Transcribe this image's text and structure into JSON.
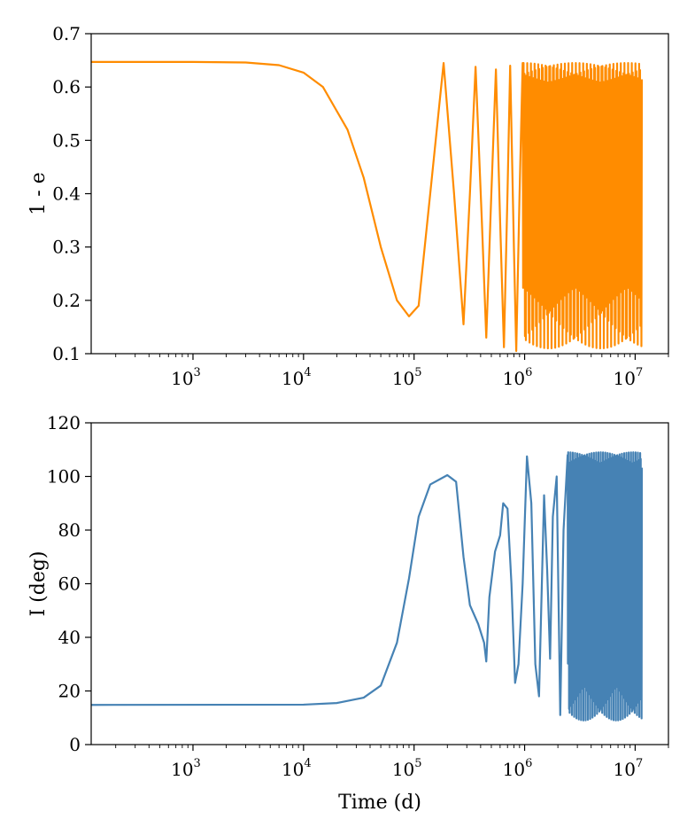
{
  "chart_data": [
    {
      "type": "line",
      "title": "",
      "xlabel": "",
      "ylabel": "1 - e",
      "x_scale": "log",
      "xlim": [
        120,
        20000000
      ],
      "ylim": [
        0.1,
        0.7
      ],
      "x_ticks": [
        {
          "base": "10",
          "exp": "3",
          "value": 1000
        },
        {
          "base": "10",
          "exp": "4",
          "value": 10000
        },
        {
          "base": "10",
          "exp": "5",
          "value": 100000
        },
        {
          "base": "10",
          "exp": "6",
          "value": 1000000
        },
        {
          "base": "10",
          "exp": "7",
          "value": 10000000
        }
      ],
      "y_ticks": [
        "0.1",
        "0.2",
        "0.3",
        "0.4",
        "0.5",
        "0.6",
        "0.7"
      ],
      "grid": false,
      "series": [
        {
          "color": "#ff8c00",
          "trend_points": [
            {
              "x": 120,
              "y": 0.647
            },
            {
              "x": 1000,
              "y": 0.647
            },
            {
              "x": 3000,
              "y": 0.646
            },
            {
              "x": 6000,
              "y": 0.641
            },
            {
              "x": 10000,
              "y": 0.627
            },
            {
              "x": 15000,
              "y": 0.6
            },
            {
              "x": 25000,
              "y": 0.52
            },
            {
              "x": 35000,
              "y": 0.43
            },
            {
              "x": 50000,
              "y": 0.3
            },
            {
              "x": 70000,
              "y": 0.2
            },
            {
              "x": 90000,
              "y": 0.17
            },
            {
              "x": 110000,
              "y": 0.19
            },
            {
              "x": 140000,
              "y": 0.4
            },
            {
              "x": 185000,
              "y": 0.645
            },
            {
              "x": 230000,
              "y": 0.4
            },
            {
              "x": 280000,
              "y": 0.155
            },
            {
              "x": 320000,
              "y": 0.4
            },
            {
              "x": 360000,
              "y": 0.638
            },
            {
              "x": 410000,
              "y": 0.35
            },
            {
              "x": 450000,
              "y": 0.13
            },
            {
              "x": 500000,
              "y": 0.4
            },
            {
              "x": 550000,
              "y": 0.633
            },
            {
              "x": 600000,
              "y": 0.35
            },
            {
              "x": 650000,
              "y": 0.112
            },
            {
              "x": 700000,
              "y": 0.4
            },
            {
              "x": 740000,
              "y": 0.64
            },
            {
              "x": 800000,
              "y": 0.3
            },
            {
              "x": 840000,
              "y": 0.105
            },
            {
              "x": 900000,
              "y": 0.4
            },
            {
              "x": 960000,
              "y": 0.645
            }
          ],
          "dense_oscillation": {
            "x_start": 960000,
            "x_end": 11500000,
            "y_min": 0.11,
            "y_max": 0.645
          }
        }
      ]
    },
    {
      "type": "line",
      "title": "",
      "xlabel": "Time (d)",
      "ylabel": "I (deg)",
      "x_scale": "log",
      "xlim": [
        120,
        20000000
      ],
      "ylim": [
        0,
        120
      ],
      "x_ticks": [
        {
          "base": "10",
          "exp": "3",
          "value": 1000
        },
        {
          "base": "10",
          "exp": "4",
          "value": 10000
        },
        {
          "base": "10",
          "exp": "5",
          "value": 100000
        },
        {
          "base": "10",
          "exp": "6",
          "value": 1000000
        },
        {
          "base": "10",
          "exp": "7",
          "value": 10000000
        }
      ],
      "y_ticks": [
        "0",
        "20",
        "40",
        "60",
        "80",
        "100",
        "120"
      ],
      "grid": false,
      "series": [
        {
          "color": "#4682b4",
          "trend_points": [
            {
              "x": 120,
              "y": 14.8
            },
            {
              "x": 10000,
              "y": 14.9
            },
            {
              "x": 20000,
              "y": 15.5
            },
            {
              "x": 35000,
              "y": 17.5
            },
            {
              "x": 50000,
              "y": 22
            },
            {
              "x": 70000,
              "y": 38
            },
            {
              "x": 90000,
              "y": 62
            },
            {
              "x": 110000,
              "y": 85
            },
            {
              "x": 140000,
              "y": 97
            },
            {
              "x": 200000,
              "y": 100.5
            },
            {
              "x": 240000,
              "y": 98
            },
            {
              "x": 280000,
              "y": 70
            },
            {
              "x": 320000,
              "y": 52
            },
            {
              "x": 380000,
              "y": 45
            },
            {
              "x": 430000,
              "y": 38
            },
            {
              "x": 450000,
              "y": 31
            },
            {
              "x": 480000,
              "y": 55
            },
            {
              "x": 540000,
              "y": 72
            },
            {
              "x": 600000,
              "y": 78
            },
            {
              "x": 640000,
              "y": 90
            },
            {
              "x": 700000,
              "y": 88
            },
            {
              "x": 760000,
              "y": 60
            },
            {
              "x": 820000,
              "y": 23
            },
            {
              "x": 880000,
              "y": 30
            },
            {
              "x": 960000,
              "y": 60
            },
            {
              "x": 1050000,
              "y": 107.5
            },
            {
              "x": 1150000,
              "y": 90
            },
            {
              "x": 1250000,
              "y": 30
            },
            {
              "x": 1350000,
              "y": 18
            },
            {
              "x": 1500000,
              "y": 93
            },
            {
              "x": 1600000,
              "y": 65
            },
            {
              "x": 1700000,
              "y": 32
            },
            {
              "x": 1800000,
              "y": 85
            },
            {
              "x": 1950000,
              "y": 100
            },
            {
              "x": 2100000,
              "y": 11
            },
            {
              "x": 2250000,
              "y": 80
            },
            {
              "x": 2450000,
              "y": 108
            }
          ],
          "dense_oscillation": {
            "x_start": 2450000,
            "x_end": 11500000,
            "y_min": 9,
            "y_max": 109
          }
        }
      ]
    }
  ]
}
